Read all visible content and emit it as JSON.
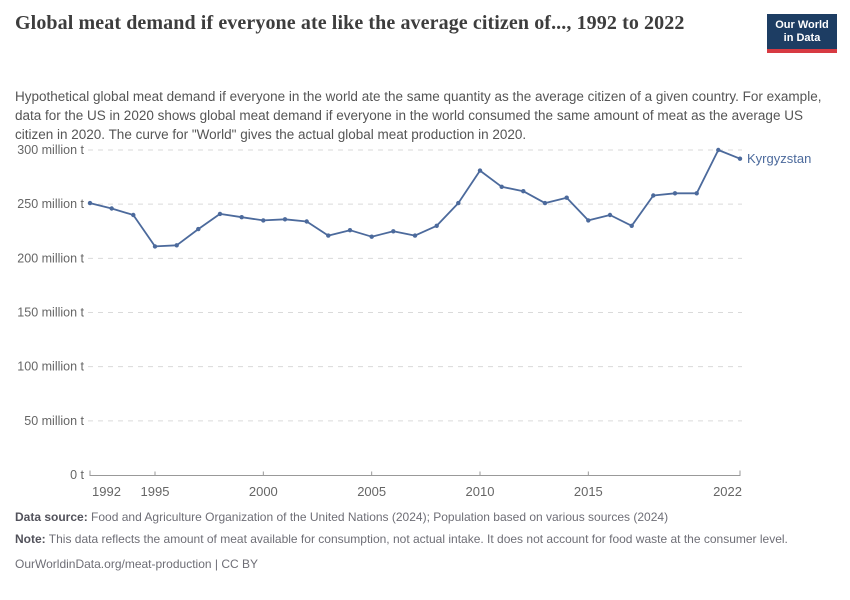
{
  "header": {
    "title": "Global meat demand if everyone ate like the average citizen of..., 1992 to 2022",
    "subtitle": "Hypothetical global meat demand if everyone in the world ate the same quantity as the average citizen of a given country. For example, data for the US in 2020 shows global meat demand if everyone in the world consumed the same amount of meat as the average US citizen in 2020. The curve for \"World\" gives the actual global meat production in 2020.",
    "logo": {
      "line1": "Our World",
      "line2": "in Data",
      "bg_color": "#1d3d63",
      "accent_color": "#d73a42"
    }
  },
  "chart_data": {
    "type": "line",
    "title": "Global meat demand if everyone ate like the average citizen of..., 1992 to 2022",
    "xlabel": "",
    "ylabel": "",
    "unit": "million t",
    "grid": true,
    "xlim": [
      1992,
      2022
    ],
    "ylim": [
      0,
      300
    ],
    "x": [
      1992,
      1993,
      1994,
      1995,
      1996,
      1997,
      1998,
      1999,
      2000,
      2001,
      2002,
      2003,
      2004,
      2005,
      2006,
      2007,
      2008,
      2009,
      2010,
      2011,
      2012,
      2013,
      2014,
      2015,
      2016,
      2017,
      2018,
      2019,
      2020,
      2021,
      2022
    ],
    "series": [
      {
        "name": "Kyrgyzstan",
        "color": "#4C6A9C",
        "values": [
          251,
          246,
          240,
          211,
          212,
          227,
          241,
          238,
          235,
          236,
          234,
          221,
          226,
          220,
          225,
          221,
          230,
          251,
          281,
          266,
          262,
          251,
          256,
          235,
          240,
          230,
          258,
          260,
          260,
          300,
          292
        ]
      }
    ],
    "yticks": [
      {
        "value": 0,
        "label": "0 t"
      },
      {
        "value": 50,
        "label": "50 million t"
      },
      {
        "value": 100,
        "label": "100 million t"
      },
      {
        "value": 150,
        "label": "150 million t"
      },
      {
        "value": 200,
        "label": "200 million t"
      },
      {
        "value": 250,
        "label": "250 million t"
      },
      {
        "value": 300,
        "label": "300 million t"
      }
    ],
    "xticks": [
      1992,
      1995,
      2000,
      2005,
      2010,
      2015,
      2022
    ],
    "legend_position": "end-of-line",
    "end_label": "Kyrgyzstan"
  },
  "footer": {
    "source_label": "Data source:",
    "source_text": "Food and Agriculture Organization of the United Nations (2024); Population based on various sources (2024)",
    "note_label": "Note:",
    "note_text": "This data reflects the amount of meat available for consumption, not actual intake. It does not account for food waste at the consumer level.",
    "citation": "OurWorldinData.org/meat-production | CC BY"
  },
  "colors": {
    "line": "#4C6A9C",
    "gridline": "#dadada",
    "axis": "#999999",
    "tick_label": "#666666"
  }
}
